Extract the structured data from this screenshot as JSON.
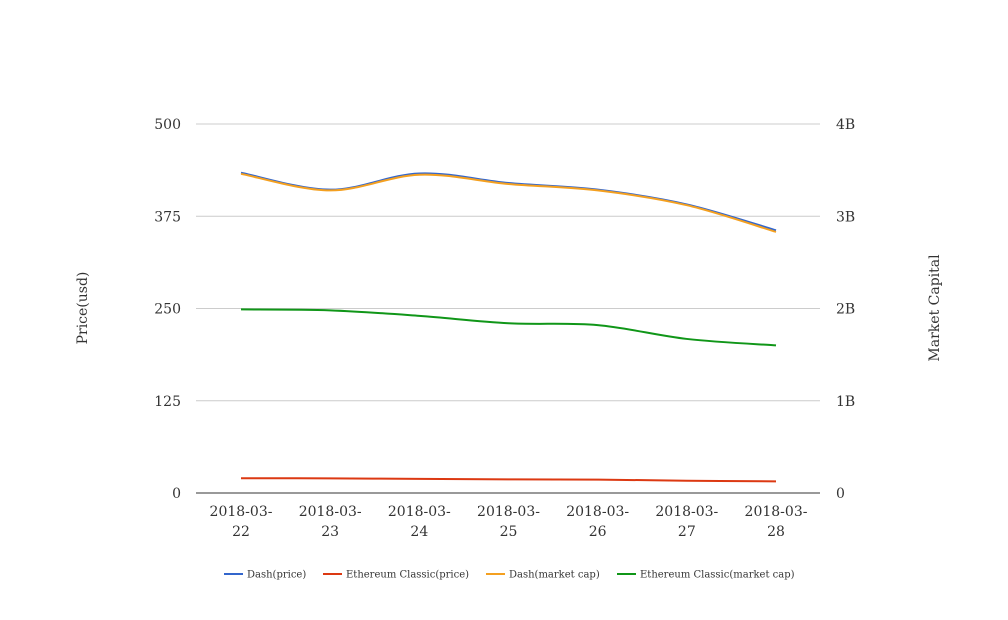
{
  "chart_data": {
    "type": "line",
    "title": "",
    "categories": [
      [
        "2018-03-",
        "22"
      ],
      [
        "2018-03-",
        "23"
      ],
      [
        "2018-03-",
        "24"
      ],
      [
        "2018-03-",
        "25"
      ],
      [
        "2018-03-",
        "26"
      ],
      [
        "2018-03-",
        "27"
      ],
      [
        "2018-03-",
        "28"
      ]
    ],
    "y_left": {
      "label": "Price(usd)",
      "ylim": [
        0,
        500
      ],
      "ticks": [
        0,
        125,
        250,
        375,
        500
      ],
      "tick_labels": [
        "0",
        "125",
        "250",
        "375",
        "500"
      ]
    },
    "y_right": {
      "label": "Market Capital",
      "ylim": [
        0,
        4000000000
      ],
      "ticks": [
        0,
        1000000000,
        2000000000,
        3000000000,
        4000000000
      ],
      "tick_labels": [
        "0",
        "1B",
        "2B",
        "3B",
        "4B"
      ]
    },
    "grid": true,
    "legend_position": "bottom",
    "series": [
      {
        "name": "Dash(price)",
        "axis": "left",
        "color": "#3366cc",
        "values": [
          434,
          411,
          433,
          420,
          411,
          391,
          356
        ]
      },
      {
        "name": "Ethereum Classic(price)",
        "axis": "left",
        "color": "#dc3912",
        "values": [
          20.0,
          19.8,
          19.2,
          18.5,
          18.2,
          16.6,
          15.8
        ]
      },
      {
        "name": "Dash(market cap)",
        "axis": "right",
        "color": "#f4a020",
        "values": [
          3460000000,
          3280000000,
          3450000000,
          3350000000,
          3280000000,
          3120000000,
          2830000000
        ]
      },
      {
        "name": "Ethereum Classic(market cap)",
        "axis": "right",
        "color": "#109618",
        "values": [
          1990000000,
          1980000000,
          1920000000,
          1840000000,
          1820000000,
          1670000000,
          1600000000
        ]
      }
    ]
  }
}
